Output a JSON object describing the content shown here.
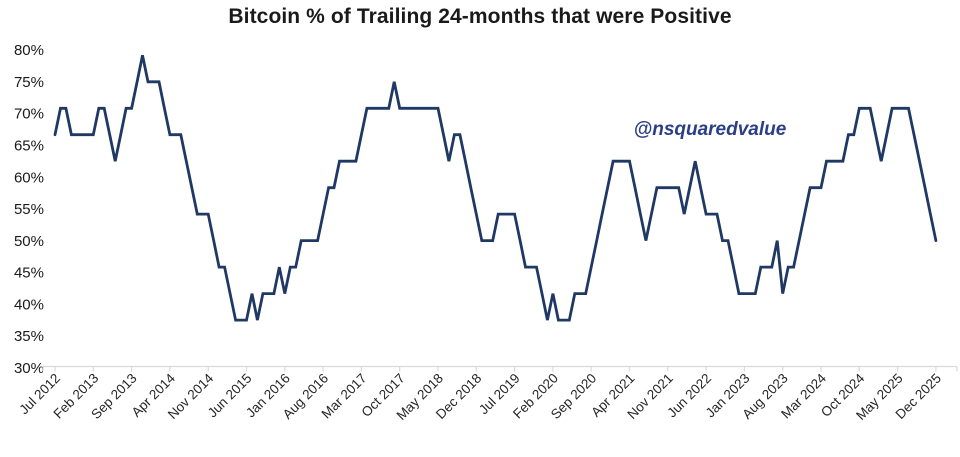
{
  "page": {
    "background": "#ffffff"
  },
  "header": {
    "title": "Bitcoin % of Trailing 24-months that were Positive"
  },
  "watermark": {
    "text": "@nsquaredvalue",
    "color": "#2b3f87"
  },
  "chart_data": {
    "type": "line",
    "title": "Bitcoin % of Trailing 24-months that were Positive",
    "x_unit": "month",
    "x_start": "Jul 2012",
    "x_end": "Dec 2025",
    "x_tick_interval_months": 7,
    "x_tick_labels": [
      "Jul 2012",
      "Feb 2013",
      "Sep 2013",
      "Apr 2014",
      "Nov 2014",
      "Jun 2015",
      "Jan 2016",
      "Aug 2016",
      "Mar 2017",
      "Oct 2017",
      "May 2018",
      "Dec 2018",
      "Jul 2019",
      "Feb 2020",
      "Sep 2020",
      "Apr 2021",
      "Nov 2021",
      "Jun 2022",
      "Jan 2023",
      "Aug 2023",
      "Mar 2024",
      "Oct 2024",
      "May 2025",
      "Dec 2025"
    ],
    "y_tick_labels": [
      "80%",
      "75%",
      "70%",
      "65%",
      "60%",
      "55%",
      "50%",
      "45%",
      "40%",
      "35%",
      "30%"
    ],
    "ylim": [
      30,
      80
    ],
    "y_unit": "%",
    "grid": false,
    "legend": "none",
    "line_color": "#1f3864",
    "axis_color": "#d9d9d9",
    "label_color": "#262626",
    "series": [
      {
        "name": "Bitcoin % of Trailing 24-months that were Positive",
        "values": [
          66.67,
          70.83,
          70.83,
          66.67,
          66.67,
          66.67,
          66.67,
          66.67,
          70.83,
          70.83,
          66.67,
          62.5,
          66.67,
          70.83,
          70.83,
          75,
          79.17,
          75,
          75,
          75,
          70.83,
          66.67,
          66.67,
          66.67,
          62.5,
          58.33,
          54.17,
          54.17,
          54.17,
          50,
          45.83,
          45.83,
          41.67,
          37.5,
          37.5,
          37.5,
          41.67,
          37.5,
          41.67,
          41.67,
          41.67,
          45.83,
          41.67,
          45.83,
          45.83,
          50,
          50,
          50,
          50,
          54.17,
          58.33,
          58.33,
          62.5,
          62.5,
          62.5,
          62.5,
          66.67,
          70.83,
          70.83,
          70.83,
          70.83,
          70.83,
          75,
          70.83,
          70.83,
          70.83,
          70.83,
          70.83,
          70.83,
          70.83,
          70.83,
          66.67,
          62.5,
          66.67,
          66.67,
          62.5,
          58.33,
          54.17,
          50,
          50,
          50,
          54.17,
          54.17,
          54.17,
          54.17,
          50,
          45.83,
          45.83,
          45.83,
          41.67,
          37.5,
          41.67,
          37.5,
          37.5,
          37.5,
          41.67,
          41.67,
          41.67,
          45.83,
          50,
          54.17,
          58.33,
          62.5,
          62.5,
          62.5,
          62.5,
          58.33,
          54.17,
          50,
          54.17,
          58.33,
          58.33,
          58.33,
          58.33,
          58.33,
          54.17,
          58.33,
          62.5,
          58.33,
          54.17,
          54.17,
          54.17,
          50,
          50,
          45.83,
          41.67,
          41.67,
          41.67,
          41.67,
          45.83,
          45.83,
          45.83,
          50,
          41.67,
          45.83,
          45.83,
          50,
          54.17,
          58.33,
          58.33,
          58.33,
          62.5,
          62.5,
          62.5,
          62.5,
          66.67,
          66.67,
          70.83,
          70.83,
          70.83,
          66.67,
          62.5,
          66.67,
          70.83,
          70.83,
          70.83,
          70.83,
          66.67,
          62.5,
          58.33,
          54.17,
          50
        ]
      }
    ]
  }
}
